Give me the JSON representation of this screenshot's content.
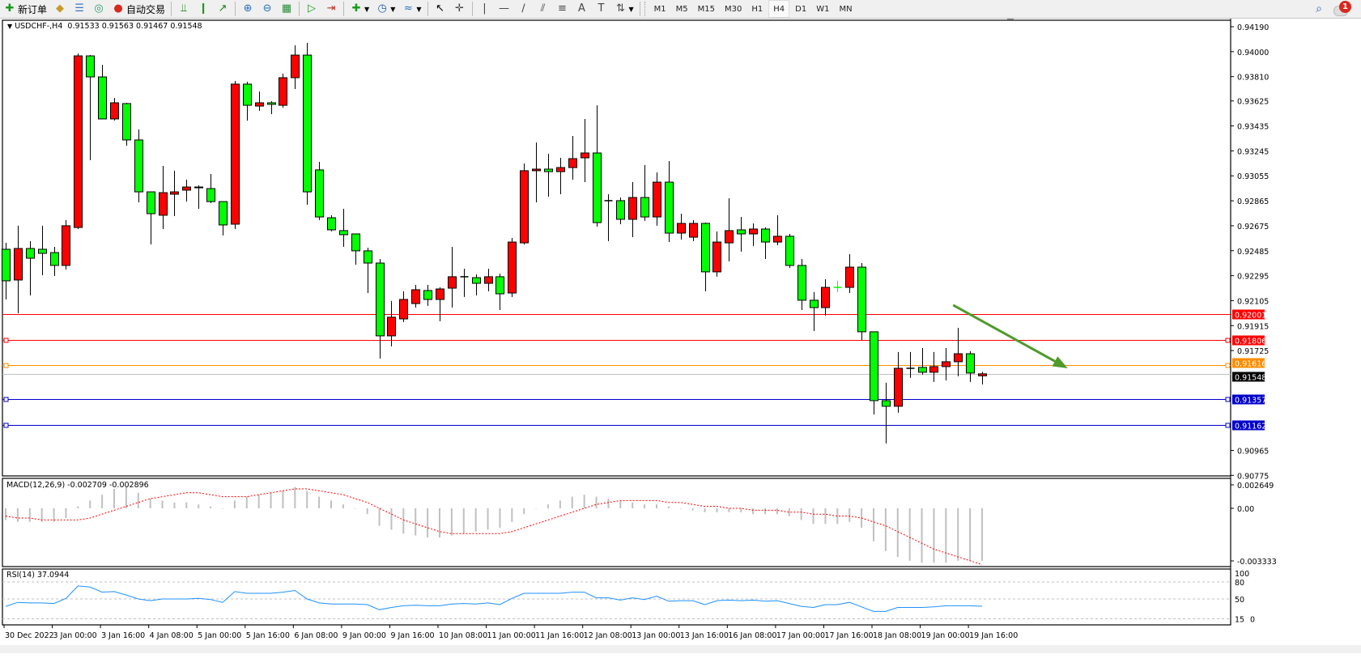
{
  "toolbar": {
    "items": [
      {
        "type": "button",
        "icon": "new-order-icon",
        "glyph": "✚",
        "color": "#1a9b1a",
        "label": "新订单"
      },
      {
        "type": "button",
        "icon": "market-watch-icon",
        "glyph": "◆",
        "color": "#c89a2a"
      },
      {
        "type": "button",
        "icon": "navigator-icon",
        "glyph": "☰",
        "color": "#3a78c0"
      },
      {
        "type": "button",
        "icon": "signal-icon",
        "glyph": "◎",
        "color": "#2a9a6a"
      },
      {
        "type": "button",
        "icon": "auto-trading-icon",
        "glyph": "●",
        "color": "#d8281e",
        "label": "自动交易"
      },
      {
        "type": "sep"
      },
      {
        "type": "button",
        "icon": "bar-chart-icon",
        "glyph": "⫫",
        "color": "#1a7a1a"
      },
      {
        "type": "button",
        "icon": "candlestick-icon",
        "glyph": "❙",
        "color": "#1a9b1a"
      },
      {
        "type": "button",
        "icon": "line-chart-icon",
        "glyph": "↗",
        "color": "#1a7a1a"
      },
      {
        "type": "sep"
      },
      {
        "type": "button",
        "icon": "zoom-in-icon",
        "glyph": "⊕",
        "color": "#2a70c0"
      },
      {
        "type": "button",
        "icon": "zoom-out-icon",
        "glyph": "⊖",
        "color": "#2a70c0"
      },
      {
        "type": "button",
        "icon": "tile-windows-icon",
        "glyph": "▦",
        "color": "#2a8a3a"
      },
      {
        "type": "sep"
      },
      {
        "type": "button",
        "icon": "auto-scroll-icon",
        "glyph": "▷",
        "color": "#1a9b1a"
      },
      {
        "type": "button",
        "icon": "chart-shift-icon",
        "glyph": "⇥",
        "color": "#c03020"
      },
      {
        "type": "sep"
      },
      {
        "type": "button",
        "icon": "indicators-icon",
        "glyph": "✚",
        "color": "#1a9b1a",
        "dropdown": true
      },
      {
        "type": "button",
        "icon": "periods-clock-icon",
        "glyph": "◷",
        "color": "#1a5fb0",
        "dropdown": true
      },
      {
        "type": "button",
        "icon": "templates-icon",
        "glyph": "≈",
        "color": "#2a70c0",
        "dropdown": true
      },
      {
        "type": "sep"
      },
      {
        "type": "button",
        "icon": "cursor-icon",
        "glyph": "↖",
        "color": "#000"
      },
      {
        "type": "button",
        "icon": "crosshair-icon",
        "glyph": "✛",
        "color": "#444"
      },
      {
        "type": "sep"
      },
      {
        "type": "button",
        "icon": "vertical-line-icon",
        "glyph": "|",
        "color": "#444"
      },
      {
        "type": "button",
        "icon": "horizontal-line-icon",
        "glyph": "—",
        "color": "#444"
      },
      {
        "type": "button",
        "icon": "trendline-icon",
        "glyph": "∕",
        "color": "#444"
      },
      {
        "type": "button",
        "icon": "equidistant-channel-icon",
        "glyph": "⫽",
        "color": "#444"
      },
      {
        "type": "button",
        "icon": "fibonacci-icon",
        "glyph": "≡",
        "color": "#444"
      },
      {
        "type": "button",
        "icon": "text-icon",
        "glyph": "A",
        "color": "#444"
      },
      {
        "type": "button",
        "icon": "text-label-icon",
        "glyph": "T",
        "color": "#444"
      },
      {
        "type": "button",
        "icon": "arrows-icon",
        "glyph": "⇅",
        "color": "#444",
        "dropdown": true
      },
      {
        "type": "sep"
      }
    ],
    "timeframes": [
      "M1",
      "M5",
      "M15",
      "M30",
      "H1",
      "H4",
      "D1",
      "W1",
      "MN"
    ],
    "active_timeframe": "H4",
    "notification_count": "1"
  },
  "chart": {
    "header": "USDCHF-,H4  0.91533 0.91563 0.91467 0.91548",
    "colors": {
      "bull": "#ff0000",
      "bear": "#00ff00",
      "wick": "#000000",
      "grid": "#c0c0c0"
    },
    "price_axis": {
      "max": 0.9419,
      "min": 0.90777,
      "ticks": [
        "0.94190",
        "0.94000",
        "0.93810",
        "0.93625",
        "0.93435",
        "0.93245",
        "0.93055",
        "0.92865",
        "0.92675",
        "0.92485",
        "0.92295",
        "0.92105",
        "0.91915",
        "0.91725",
        "0.90965",
        "0.90775"
      ]
    },
    "time_labels": [
      "30 Dec 2022",
      "3 Jan 00:00",
      "3 Jan 16:00",
      "4 Jan 08:00",
      "5 Jan 00:00",
      "5 Jan 16:00",
      "6 Jan 08:00",
      "9 Jan 00:00",
      "9 Jan 16:00",
      "10 Jan 08:00",
      "11 Jan 00:00",
      "11 Jan 16:00",
      "12 Jan 08:00",
      "13 Jan 00:00",
      "13 Jan 16:00",
      "16 Jan 08:00",
      "17 Jan 00:00",
      "17 Jan 16:00",
      "18 Jan 08:00",
      "19 Jan 00:00",
      "19 Jan 16:00"
    ],
    "candles": [
      [
        0.92496,
        0.92545,
        0.92114,
        0.92256
      ],
      [
        0.92262,
        0.92675,
        0.92009,
        0.92502
      ],
      [
        0.92502,
        0.92558,
        0.92145,
        0.92428
      ],
      [
        0.92496,
        0.92675,
        0.92299,
        0.92465
      ],
      [
        0.92471,
        0.92514,
        0.92293,
        0.92373
      ],
      [
        0.92373,
        0.92718,
        0.92342,
        0.92675
      ],
      [
        0.92662,
        0.93987,
        0.9265,
        0.93968
      ],
      [
        0.93968,
        0.93974,
        0.93174,
        0.93808
      ],
      [
        0.93808,
        0.939,
        0.93488,
        0.93488
      ],
      [
        0.93488,
        0.93648,
        0.93475,
        0.93611
      ],
      [
        0.93605,
        0.93611,
        0.93284,
        0.93328
      ],
      [
        0.93328,
        0.93408,
        0.92853,
        0.92933
      ],
      [
        0.92933,
        0.92933,
        0.92533,
        0.92767
      ],
      [
        0.92755,
        0.9313,
        0.9265,
        0.92927
      ],
      [
        0.92915,
        0.93094,
        0.92749,
        0.92933
      ],
      [
        0.92946,
        0.93026,
        0.92859,
        0.9297
      ],
      [
        0.92964,
        0.92983,
        0.92804,
        0.9297
      ],
      [
        0.92958,
        0.93069,
        0.92847,
        0.92859
      ],
      [
        0.92859,
        0.92859,
        0.92601,
        0.92681
      ],
      [
        0.92687,
        0.93777,
        0.9265,
        0.93753
      ],
      [
        0.93753,
        0.93771,
        0.93475,
        0.93592
      ],
      [
        0.93586,
        0.93697,
        0.93549,
        0.93611
      ],
      [
        0.93611,
        0.93623,
        0.93525,
        0.93599
      ],
      [
        0.93592,
        0.93833,
        0.93574,
        0.93802
      ],
      [
        0.93802,
        0.94048,
        0.93716,
        0.93974
      ],
      [
        0.93974,
        0.94067,
        0.92835,
        0.92933
      ],
      [
        0.931,
        0.93161,
        0.92718,
        0.92742
      ],
      [
        0.92736,
        0.92755,
        0.92632,
        0.92644
      ],
      [
        0.92638,
        0.92804,
        0.92514,
        0.92607
      ],
      [
        0.92613,
        0.92613,
        0.92379,
        0.92484
      ],
      [
        0.92484,
        0.92508,
        0.92163,
        0.92391
      ],
      [
        0.92391,
        0.92422,
        0.91664,
        0.91837
      ],
      [
        0.91837,
        0.92102,
        0.91757,
        0.91979
      ],
      [
        0.91966,
        0.92176,
        0.91942,
        0.92114
      ],
      [
        0.92083,
        0.92225,
        0.92052,
        0.92188
      ],
      [
        0.92182,
        0.92225,
        0.92065,
        0.92114
      ],
      [
        0.92114,
        0.92206,
        0.91948,
        0.92194
      ],
      [
        0.922,
        0.92514,
        0.92052,
        0.92287
      ],
      [
        0.92287,
        0.92348,
        0.92133,
        0.92287
      ],
      [
        0.9228,
        0.92305,
        0.92145,
        0.92237
      ],
      [
        0.92237,
        0.92348,
        0.92176,
        0.92287
      ],
      [
        0.92287,
        0.92311,
        0.92034,
        0.92157
      ],
      [
        0.92163,
        0.92582,
        0.92133,
        0.92551
      ],
      [
        0.92545,
        0.93149,
        0.92533,
        0.93094
      ],
      [
        0.93094,
        0.93309,
        0.92853,
        0.93106
      ],
      [
        0.93106,
        0.93223,
        0.92896,
        0.93087
      ],
      [
        0.93087,
        0.93192,
        0.92915,
        0.93118
      ],
      [
        0.93118,
        0.93358,
        0.93026,
        0.93186
      ],
      [
        0.93192,
        0.93488,
        0.93007,
        0.93229
      ],
      [
        0.93229,
        0.93592,
        0.92668,
        0.92699
      ],
      [
        0.92866,
        0.92915,
        0.92558,
        0.92866
      ],
      [
        0.92866,
        0.9289,
        0.92687,
        0.92724
      ],
      [
        0.92724,
        0.93007,
        0.92588,
        0.9289
      ],
      [
        0.9289,
        0.93137,
        0.92712,
        0.92742
      ],
      [
        0.92742,
        0.93081,
        0.92675,
        0.93007
      ],
      [
        0.93007,
        0.93167,
        0.92551,
        0.92619
      ],
      [
        0.92619,
        0.92767,
        0.9257,
        0.92693
      ],
      [
        0.92588,
        0.92718,
        0.92558,
        0.92693
      ],
      [
        0.92693,
        0.92699,
        0.92176,
        0.92324
      ],
      [
        0.92324,
        0.92632,
        0.92287,
        0.92551
      ],
      [
        0.92545,
        0.92884,
        0.92404,
        0.92638
      ],
      [
        0.92644,
        0.92742,
        0.92478,
        0.92613
      ],
      [
        0.92613,
        0.92693,
        0.92521,
        0.9265
      ],
      [
        0.9265,
        0.92662,
        0.92422,
        0.92551
      ],
      [
        0.92551,
        0.92755,
        0.92527,
        0.92595
      ],
      [
        0.92595,
        0.92613,
        0.92354,
        0.92373
      ],
      [
        0.92373,
        0.92422,
        0.92034,
        0.92108
      ],
      [
        0.92108,
        0.9217,
        0.91874,
        0.92052
      ],
      [
        0.92052,
        0.92268,
        0.91991,
        0.92206
      ],
      [
        0.92206,
        0.92256,
        0.9217,
        0.92206
      ],
      [
        0.92206,
        0.92459,
        0.92163,
        0.9236
      ],
      [
        0.9236,
        0.92391,
        0.91806,
        0.91868
      ],
      [
        0.91868,
        0.91868,
        0.91239,
        0.91344
      ],
      [
        0.91344,
        0.9148,
        0.91018,
        0.91301
      ],
      [
        0.91301,
        0.91714,
        0.91252,
        0.9159
      ],
      [
        0.9159,
        0.91714,
        0.91517,
        0.9159
      ],
      [
        0.91597,
        0.91744,
        0.91541,
        0.9156
      ],
      [
        0.9156,
        0.91714,
        0.91486,
        0.91603
      ],
      [
        0.91603,
        0.91744,
        0.91498,
        0.9164
      ],
      [
        0.9164,
        0.91898,
        0.91529,
        0.91701
      ],
      [
        0.91701,
        0.9172,
        0.91486,
        0.91554
      ],
      [
        0.91533,
        0.91563,
        0.91467,
        0.91548
      ]
    ],
    "hlines": [
      {
        "price": "0.92001",
        "color": "#ff0000",
        "marker": false
      },
      {
        "price": "0.91806",
        "color": "#ff0000",
        "marker": true
      },
      {
        "price": "0.91616",
        "color": "#ff8c00",
        "marker": true
      },
      {
        "price": "0.91548",
        "color": "#c0c0c0",
        "marker": false,
        "label_bg": "#000000"
      },
      {
        "price": "0.91357",
        "color": "#0000cc",
        "marker": true
      },
      {
        "price": "0.91162",
        "color": "#0000cc",
        "marker": true
      }
    ],
    "arrow": {
      "color": "#4f9a2a",
      "from": {
        "bar": 78.6,
        "price": 0.92071
      },
      "to": {
        "bar": 88.1,
        "price": 0.9159
      }
    }
  },
  "macd": {
    "legend": "MACD(12,26,9) -0.002709 -0.002896",
    "ticks": [
      "0.002649",
      "0.00",
      "-0.003333"
    ],
    "histogram": [
      -0.0006,
      -0.0007,
      -0.0007,
      -0.0007,
      -0.0007,
      -0.0005,
      0.0001,
      0.0004,
      0.0007,
      0.001,
      0.0011,
      0.0008,
      0.0005,
      0.0004,
      0.0003,
      0.0003,
      0.0002,
      0.0001,
      0.0,
      0.0004,
      0.0006,
      0.0007,
      0.0008,
      0.0009,
      0.0011,
      0.0009,
      0.0006,
      0.0004,
      0.0002,
      0.0,
      -0.0003,
      -0.0009,
      -0.0011,
      -0.0013,
      -0.0014,
      -0.0015,
      -0.0015,
      -0.0014,
      -0.0013,
      -0.0012,
      -0.0011,
      -0.001,
      -0.0007,
      -0.0003,
      0.0,
      0.0002,
      0.0004,
      0.0006,
      0.0007,
      0.0006,
      0.0005,
      0.0004,
      0.0003,
      0.0002,
      0.0002,
      0.0001,
      0.0,
      -0.0001,
      -0.0002,
      -0.0002,
      -0.0002,
      -0.0002,
      -0.0003,
      -0.0003,
      -0.0003,
      -0.0004,
      -0.0006,
      -0.0008,
      -0.0008,
      -0.0008,
      -0.0007,
      -0.001,
      -0.0017,
      -0.0022,
      -0.0025,
      -0.0027,
      -0.0028,
      -0.0028,
      -0.0028,
      -0.0027,
      -0.0027,
      -0.0027
    ],
    "signal": [
      -0.0004,
      -0.0005,
      -0.0005,
      -0.0006,
      -0.0006,
      -0.0006,
      -0.0006,
      -0.0005,
      -0.0003,
      -0.0001,
      0.0001,
      0.0003,
      0.0005,
      0.0006,
      0.0007,
      0.0008,
      0.0008,
      0.0007,
      0.0006,
      0.0006,
      0.0006,
      0.0007,
      0.0008,
      0.0009,
      0.001,
      0.001,
      0.0009,
      0.0008,
      0.0007,
      0.0005,
      0.0003,
      0.0,
      -0.0003,
      -0.0006,
      -0.0008,
      -0.001,
      -0.0012,
      -0.0013,
      -0.0013,
      -0.0013,
      -0.0013,
      -0.0013,
      -0.0012,
      -0.001,
      -0.0008,
      -0.0006,
      -0.0004,
      -0.0002,
      0.0,
      0.0002,
      0.0003,
      0.0004,
      0.0004,
      0.0004,
      0.0004,
      0.0003,
      0.0003,
      0.0002,
      0.0001,
      0.0001,
      0.0,
      0.0,
      -0.0001,
      -0.0001,
      -0.0001,
      -0.0002,
      -0.0002,
      -0.0003,
      -0.0003,
      -0.0004,
      -0.0004,
      -0.0005,
      -0.0007,
      -0.0009,
      -0.0012,
      -0.0015,
      -0.0018,
      -0.0021,
      -0.0023,
      -0.0025,
      -0.0027,
      -0.0029
    ],
    "hist_color": "#c0c0c0",
    "signal_color": "#ff0000"
  },
  "rsi": {
    "legend": "RSI(14) 37.0944",
    "ticks": [
      "100",
      "80",
      "50",
      "15",
      "0"
    ],
    "levels": [
      80,
      50,
      15
    ],
    "values": [
      37,
      44,
      43,
      43,
      42,
      51,
      73,
      71,
      62,
      63,
      57,
      50,
      47,
      50,
      50,
      50,
      51,
      49,
      44,
      63,
      60,
      60,
      60,
      62,
      65,
      50,
      43,
      41,
      41,
      41,
      40,
      31,
      35,
      38,
      39,
      38,
      38,
      41,
      42,
      41,
      43,
      40,
      51,
      60,
      60,
      60,
      60,
      62,
      62,
      52,
      52,
      48,
      52,
      49,
      55,
      46,
      47,
      47,
      40,
      47,
      48,
      47,
      48,
      46,
      47,
      42,
      37,
      35,
      40,
      40,
      44,
      36,
      28,
      28,
      35,
      35,
      35,
      36,
      38,
      38,
      38,
      37.0944
    ],
    "color": "#1e90ff"
  }
}
